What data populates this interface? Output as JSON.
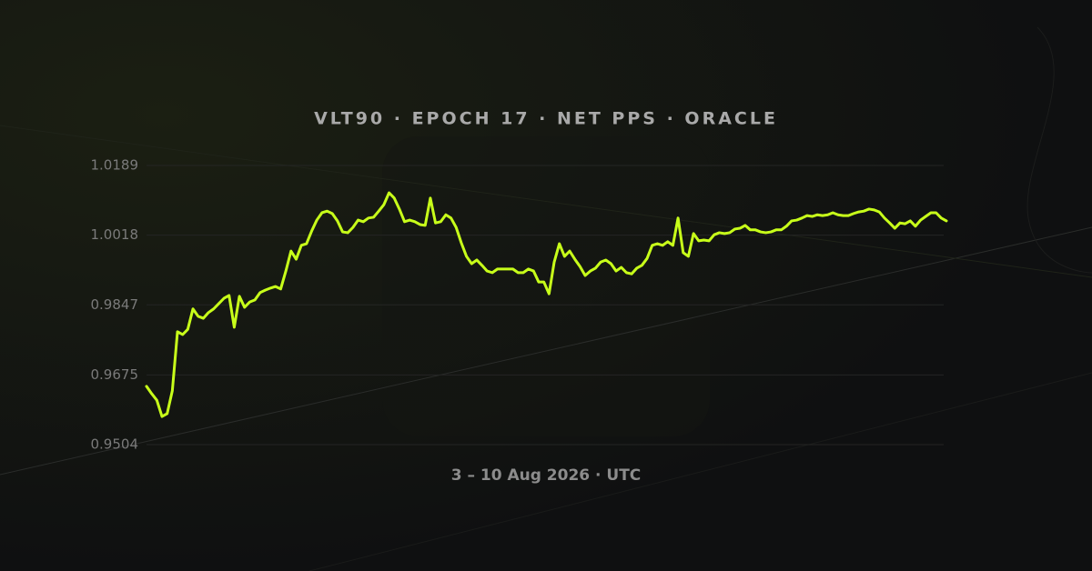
{
  "chart_data": {
    "type": "line",
    "title": "VLT90 · EPOCH 17 · NET PPS · ORACLE",
    "subtitle": "3 – 10 Aug 2026 · UTC",
    "categories": [
      null,
      null,
      null,
      null,
      null,
      null,
      null,
      null,
      null,
      null,
      null,
      null,
      null,
      null,
      null,
      null,
      null,
      null,
      null,
      null,
      null,
      null,
      null,
      null,
      null,
      null,
      null,
      null,
      null,
      null,
      null,
      null,
      null,
      null,
      null,
      null,
      null,
      null,
      null,
      null,
      null,
      null,
      null,
      null,
      null,
      null,
      null,
      null,
      null,
      null,
      null,
      null,
      null,
      null,
      null,
      null,
      null,
      null,
      null,
      null,
      null,
      null,
      null,
      null,
      null,
      null,
      null,
      null,
      null,
      null,
      null,
      null,
      null,
      null,
      null,
      null,
      null,
      null,
      null,
      null,
      null,
      null,
      null,
      null,
      null,
      null,
      null,
      null,
      null,
      null,
      null,
      null,
      null,
      null,
      null,
      null,
      null,
      null,
      null,
      null,
      null,
      null,
      null,
      null,
      null,
      null,
      null,
      null,
      null,
      null,
      null,
      null,
      null,
      null,
      null,
      null,
      null,
      null,
      null,
      null,
      null,
      null,
      null,
      null,
      null,
      null,
      null,
      null,
      null,
      null,
      null,
      null,
      null,
      null,
      null,
      null,
      null,
      null,
      null,
      null,
      null,
      null,
      null,
      null,
      null,
      null,
      null,
      null,
      null,
      null,
      null,
      null,
      null,
      null,
      null,
      null
    ],
    "values": [
      0.9647,
      0.9629,
      0.9613,
      0.9573,
      0.958,
      0.9636,
      0.9781,
      0.9774,
      0.9787,
      0.9837,
      0.9819,
      0.9814,
      0.9828,
      0.9837,
      0.985,
      0.9863,
      0.987,
      0.9792,
      0.9868,
      0.9841,
      0.9854,
      0.9859,
      0.9877,
      0.9883,
      0.9888,
      0.9892,
      0.9886,
      0.993,
      0.9979,
      0.9959,
      0.9993,
      0.9997,
      1.0028,
      1.0055,
      1.0073,
      1.0077,
      1.0071,
      1.0053,
      1.0026,
      1.0024,
      1.0037,
      1.0055,
      1.0051,
      1.006,
      1.0062,
      1.0077,
      1.0093,
      1.0122,
      1.0109,
      1.0082,
      1.0051,
      1.0055,
      1.0051,
      1.0044,
      1.0042,
      1.0109,
      1.0048,
      1.0051,
      1.0068,
      1.006,
      1.0037,
      0.9999,
      0.9966,
      0.9948,
      0.9957,
      0.9944,
      0.993,
      0.9926,
      0.9935,
      0.9935,
      0.9935,
      0.9935,
      0.9926,
      0.9926,
      0.9935,
      0.993,
      0.9903,
      0.9903,
      0.9874,
      0.9952,
      0.9997,
      0.9966,
      0.9979,
      0.9959,
      0.9941,
      0.9919,
      0.993,
      0.9937,
      0.9952,
      0.9957,
      0.9948,
      0.993,
      0.9939,
      0.9926,
      0.9923,
      0.9937,
      0.9944,
      0.9961,
      0.9993,
      0.9997,
      0.9993,
      1.0002,
      0.9993,
      1.006,
      0.9975,
      0.9966,
      1.0022,
      1.0004,
      1.0006,
      1.0004,
      1.0019,
      1.0024,
      1.0022,
      1.0024,
      1.0033,
      1.0035,
      1.0042,
      1.0031,
      1.0031,
      1.0026,
      1.0024,
      1.0026,
      1.0031,
      1.0031,
      1.004,
      1.0053,
      1.0055,
      1.006,
      1.0066,
      1.0064,
      1.0068,
      1.0066,
      1.0068,
      1.0073,
      1.0068,
      1.0066,
      1.0066,
      1.0071,
      1.0075,
      1.0077,
      1.0082,
      1.008,
      1.0075,
      1.006,
      1.0048,
      1.0035,
      1.0048,
      1.0046,
      1.0053,
      1.004,
      1.0055,
      1.0064,
      1.0073,
      1.0073,
      1.006,
      1.0053
    ],
    "color": "#c8ff1a",
    "ylim": [
      0.9504,
      1.0189
    ],
    "yticks": [
      0.9504,
      0.9675,
      0.9847,
      1.0018,
      1.0189
    ],
    "grid": true
  }
}
